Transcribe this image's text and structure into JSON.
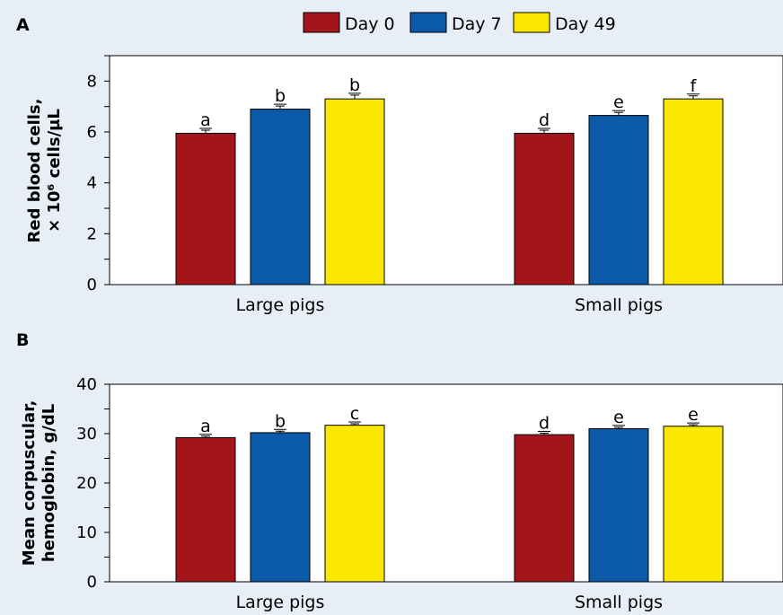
{
  "legend": [
    {
      "label": "Day 0",
      "color": "#a3151a"
    },
    {
      "label": "Day 7",
      "color": "#0a5aa7"
    },
    {
      "label": "Day 49",
      "color": "#fbe800"
    }
  ],
  "chart_data": [
    {
      "panel": "A",
      "type": "bar",
      "categories": [
        "Large pigs",
        "Small pigs"
      ],
      "ylabel": [
        "Red blood cells,",
        "× 10⁶ cells/µL"
      ],
      "ylim": [
        0,
        9
      ],
      "yticks": [
        0,
        2,
        4,
        6,
        8
      ],
      "grid": false,
      "legend_position": "top",
      "series": [
        {
          "name": "Day 0",
          "values": [
            5.95,
            5.95
          ],
          "errors": [
            0.12,
            0.12
          ],
          "letters": [
            "a",
            "d"
          ]
        },
        {
          "name": "Day 7",
          "values": [
            6.9,
            6.65
          ],
          "errors": [
            0.12,
            0.12
          ],
          "letters": [
            "b",
            "e"
          ]
        },
        {
          "name": "Day 49",
          "values": [
            7.3,
            7.3
          ],
          "errors": [
            0.15,
            0.12
          ],
          "letters": [
            "b",
            "f"
          ]
        }
      ]
    },
    {
      "panel": "B",
      "type": "bar",
      "categories": [
        "Large pigs",
        "Small pigs"
      ],
      "ylabel": [
        "Mean corpuscular,",
        "hemoglobin, g/dL"
      ],
      "ylim": [
        0,
        40
      ],
      "yticks": [
        0,
        10,
        20,
        30,
        40
      ],
      "grid": false,
      "series": [
        {
          "name": "Day 0",
          "values": [
            29.2,
            29.8
          ],
          "errors": [
            0.3,
            0.3
          ],
          "letters": [
            "a",
            "d"
          ]
        },
        {
          "name": "Day 7",
          "values": [
            30.2,
            31.0
          ],
          "errors": [
            0.3,
            0.3
          ],
          "letters": [
            "b",
            "e"
          ]
        },
        {
          "name": "Day 49",
          "values": [
            31.7,
            31.5
          ],
          "errors": [
            0.3,
            0.3
          ],
          "letters": [
            "c",
            "e"
          ]
        }
      ]
    }
  ]
}
